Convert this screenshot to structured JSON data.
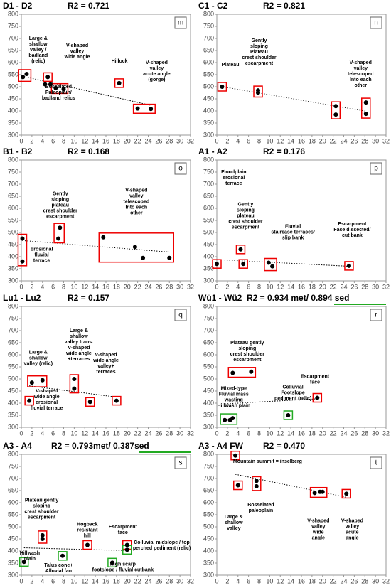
{
  "chart_data": [
    {
      "type": "scatter",
      "title": "D1 - D2",
      "subtitle": "R2 = 0.721",
      "panel": "m",
      "color": "#000000",
      "x": [
        0.3,
        1,
        5,
        4.5,
        5.5,
        6.5,
        8,
        18.5,
        22,
        24.5
      ],
      "y": [
        540,
        553,
        540,
        510,
        510,
        495,
        490,
        515,
        410,
        408
      ],
      "xlim": [
        0,
        32
      ],
      "ylim": [
        300,
        800
      ],
      "xticks": [
        0,
        2,
        4,
        6,
        8,
        10,
        12,
        14,
        16,
        18,
        20,
        22,
        24,
        26,
        28,
        30,
        32
      ],
      "yticks": [
        300,
        350,
        400,
        450,
        500,
        550,
        600,
        650,
        700,
        750,
        800
      ],
      "annotations": [
        [
          "Large &",
          "shallow",
          "valley /",
          "badland",
          "(relic)"
        ],
        [
          "V-shaped",
          "valley",
          "wide angle"
        ],
        [
          "Bosselated",
          "Paleoplain/",
          "badland relics"
        ],
        [
          "Hillock"
        ],
        [
          "V-shaped",
          "valley",
          "acute angle",
          "(gorge)"
        ]
      ]
    },
    {
      "type": "scatter",
      "title": "C1 - C2",
      "subtitle": "R2 = 0.821",
      "panel": "n",
      "color": "#000000",
      "x": [
        1,
        7.8,
        7.8,
        22.5,
        22.5,
        28.2,
        28.2
      ],
      "y": [
        500,
        485,
        475,
        420,
        385,
        435,
        388
      ],
      "xlim": [
        0,
        32
      ],
      "ylim": [
        300,
        800
      ],
      "xticks": [
        0,
        2,
        4,
        6,
        8,
        10,
        12,
        14,
        16,
        18,
        20,
        22,
        24,
        26,
        28,
        30,
        32
      ],
      "yticks": [
        300,
        350,
        400,
        450,
        500,
        550,
        600,
        650,
        700,
        750,
        800
      ],
      "annotations": [
        [
          "Plateau"
        ],
        [
          "Gently",
          "sloping",
          "Plateau",
          "crest shoulder",
          "escarpment"
        ],
        [
          "V-shaped",
          "valley",
          "telescoped",
          "Into each",
          "other"
        ]
      ]
    },
    {
      "type": "scatter",
      "title": "B1 - B2",
      "subtitle": "R2 = 0.168",
      "panel": "o",
      "color": "#000000",
      "x": [
        0.2,
        0.2,
        7.3,
        7,
        15.5,
        21.5,
        23,
        28
      ],
      "y": [
        475,
        380,
        520,
        475,
        480,
        440,
        395,
        395
      ],
      "xlim": [
        0,
        32
      ],
      "ylim": [
        300,
        800
      ],
      "xticks": [
        0,
        2,
        4,
        6,
        8,
        10,
        12,
        14,
        16,
        18,
        20,
        22,
        24,
        26,
        28,
        30,
        32
      ],
      "yticks": [
        300,
        350,
        400,
        450,
        500,
        550,
        600,
        650,
        700,
        750,
        800
      ],
      "annotations": [
        [
          "Erosional",
          "fluvial",
          "terrace"
        ],
        [
          "Gently",
          "sloping",
          "plateau",
          "crest shoulder",
          "escarpment"
        ],
        [
          "V-shaped",
          "valley",
          "telescoped",
          "Into each",
          "other"
        ]
      ]
    },
    {
      "type": "scatter",
      "title": "A1 - A2",
      "subtitle": "R2 = 0.176",
      "panel": "p",
      "color": "#000000",
      "x": [
        0,
        4.5,
        5,
        9.8,
        10.5,
        25
      ],
      "y": [
        370,
        430,
        370,
        375,
        360,
        362
      ],
      "xlim": [
        0,
        32
      ],
      "ylim": [
        300,
        800
      ],
      "xticks": [
        0,
        2,
        4,
        6,
        8,
        10,
        12,
        14,
        16,
        18,
        20,
        22,
        24,
        26,
        28,
        30,
        32
      ],
      "yticks": [
        300,
        350,
        400,
        450,
        500,
        550,
        600,
        650,
        700,
        750,
        800
      ],
      "annotations": [
        [
          "Floodplain",
          "erosional",
          "terrace"
        ],
        [
          "Gently",
          "sloping",
          "plateau",
          "crest shoulder",
          "escarpment"
        ],
        [
          "Fluvial",
          "staircase terraces/",
          "slip bank"
        ],
        [
          "Escarpment",
          "Face dissected/",
          "cut bank"
        ]
      ]
    },
    {
      "type": "scatter",
      "title": "Lu1 - Lu2",
      "subtitle": "R2 = 0.157",
      "panel": "q",
      "color": "#000000",
      "x": [
        2,
        4,
        1.5,
        10,
        10,
        13,
        18
      ],
      "y": [
        485,
        495,
        410,
        500,
        460,
        405,
        410
      ],
      "xlim": [
        0,
        32
      ],
      "ylim": [
        300,
        800
      ],
      "xticks": [
        0,
        2,
        4,
        6,
        8,
        10,
        12,
        14,
        16,
        18,
        20,
        22,
        24,
        26,
        28,
        30,
        32
      ],
      "yticks": [
        300,
        350,
        400,
        450,
        500,
        550,
        600,
        650,
        700,
        750,
        800
      ],
      "annotations": [
        [
          "Large &",
          "shallow",
          "valley (relic)"
        ],
        [
          "V-shaped",
          "wide angle",
          "erosional",
          "fluvial terrace"
        ],
        [
          "Large &",
          "shallow",
          "valley trans.",
          "V-shaped",
          "wide angle",
          "+terraces"
        ],
        [
          "V-shaped",
          "wide angle",
          "valley+",
          "terraces"
        ]
      ]
    },
    {
      "type": "scatter",
      "title": "Wü1 - Wü2",
      "subtitle": "R2 = 0.934 met/ 0.894 sed",
      "panel": "r",
      "color": "#000000",
      "x": [
        3,
        6.5,
        1.5,
        2.5,
        3,
        13.5,
        19
      ],
      "y": [
        525,
        530,
        330,
        330,
        338,
        350,
        422
      ],
      "xlim": [
        0,
        32
      ],
      "ylim": [
        300,
        800
      ],
      "xticks": [
        0,
        2,
        4,
        6,
        8,
        10,
        12,
        14,
        16,
        18,
        20,
        22,
        24,
        26,
        28,
        30,
        32
      ],
      "yticks": [
        300,
        350,
        400,
        450,
        500,
        550,
        600,
        650,
        700,
        750,
        800
      ],
      "annotations": [
        [
          "Plateau gently",
          "sloping",
          "crest shoulder",
          "escarpment"
        ],
        [
          "Escarpment",
          "face"
        ],
        [
          "Mixed-type",
          "Fluvial mass",
          "wasting",
          "Hillwash plain"
        ],
        [
          "Colluvial",
          "Footslope",
          "pediment (relic)"
        ]
      ]
    },
    {
      "type": "scatter",
      "title": "A3 - A4",
      "subtitle": "R2 = 0.793met/ 0.387sed",
      "panel": "s",
      "color": "#000000",
      "x": [
        0.5,
        4,
        4,
        7.8,
        12.5,
        17.2,
        20,
        20
      ],
      "y": [
        355,
        465,
        450,
        380,
        425,
        352,
        425,
        405
      ],
      "xlim": [
        0,
        32
      ],
      "ylim": [
        300,
        800
      ],
      "xticks": [
        0,
        2,
        4,
        6,
        8,
        10,
        12,
        14,
        16,
        18,
        20,
        22,
        24,
        26,
        28,
        30,
        32
      ],
      "yticks": [
        300,
        350,
        400,
        450,
        500,
        550,
        600,
        650,
        700,
        750,
        800
      ],
      "annotations": [
        [
          "Plateau gently",
          "sloping",
          "crest shoulder",
          "escarpment"
        ],
        [
          "Hogback",
          "resistant",
          "hill"
        ],
        [
          "Escarpment",
          "face"
        ],
        [
          "Hillwash",
          "plain"
        ],
        [
          "Talus cone+",
          "Alluvial fan"
        ],
        [
          "Colluvial midslope / top",
          "perched pediment (relic)"
        ],
        [
          "High scarp",
          "footslope / fluvial cutbank"
        ]
      ]
    },
    {
      "type": "scatter",
      "title": "A3 - A4 FW",
      "subtitle": "R2 = 0.470",
      "panel": "t",
      "color": "#000000",
      "x": [
        3.5,
        4,
        7.5,
        7.5,
        18.5,
        19.5,
        20,
        24.5
      ],
      "y": [
        795,
        672,
        690,
        668,
        640,
        645,
        645,
        637
      ],
      "xlim": [
        0,
        32
      ],
      "ylim": [
        300,
        800
      ],
      "xticks": [
        0,
        2,
        4,
        6,
        8,
        10,
        12,
        14,
        16,
        18,
        20,
        22,
        24,
        26,
        28,
        30,
        32
      ],
      "yticks": [
        300,
        350,
        400,
        450,
        500,
        550,
        600,
        650,
        700,
        750,
        800
      ],
      "annotations": [
        [
          "Mountain summit = inselberg"
        ],
        [
          "Large &",
          "shallow",
          "valley"
        ],
        [
          "Bosselated",
          "paleoplain"
        ],
        [
          "V-shaped",
          "valley",
          "wide",
          "angle"
        ],
        [
          "V-shaped",
          "valley",
          "acute",
          "angle"
        ]
      ]
    }
  ]
}
